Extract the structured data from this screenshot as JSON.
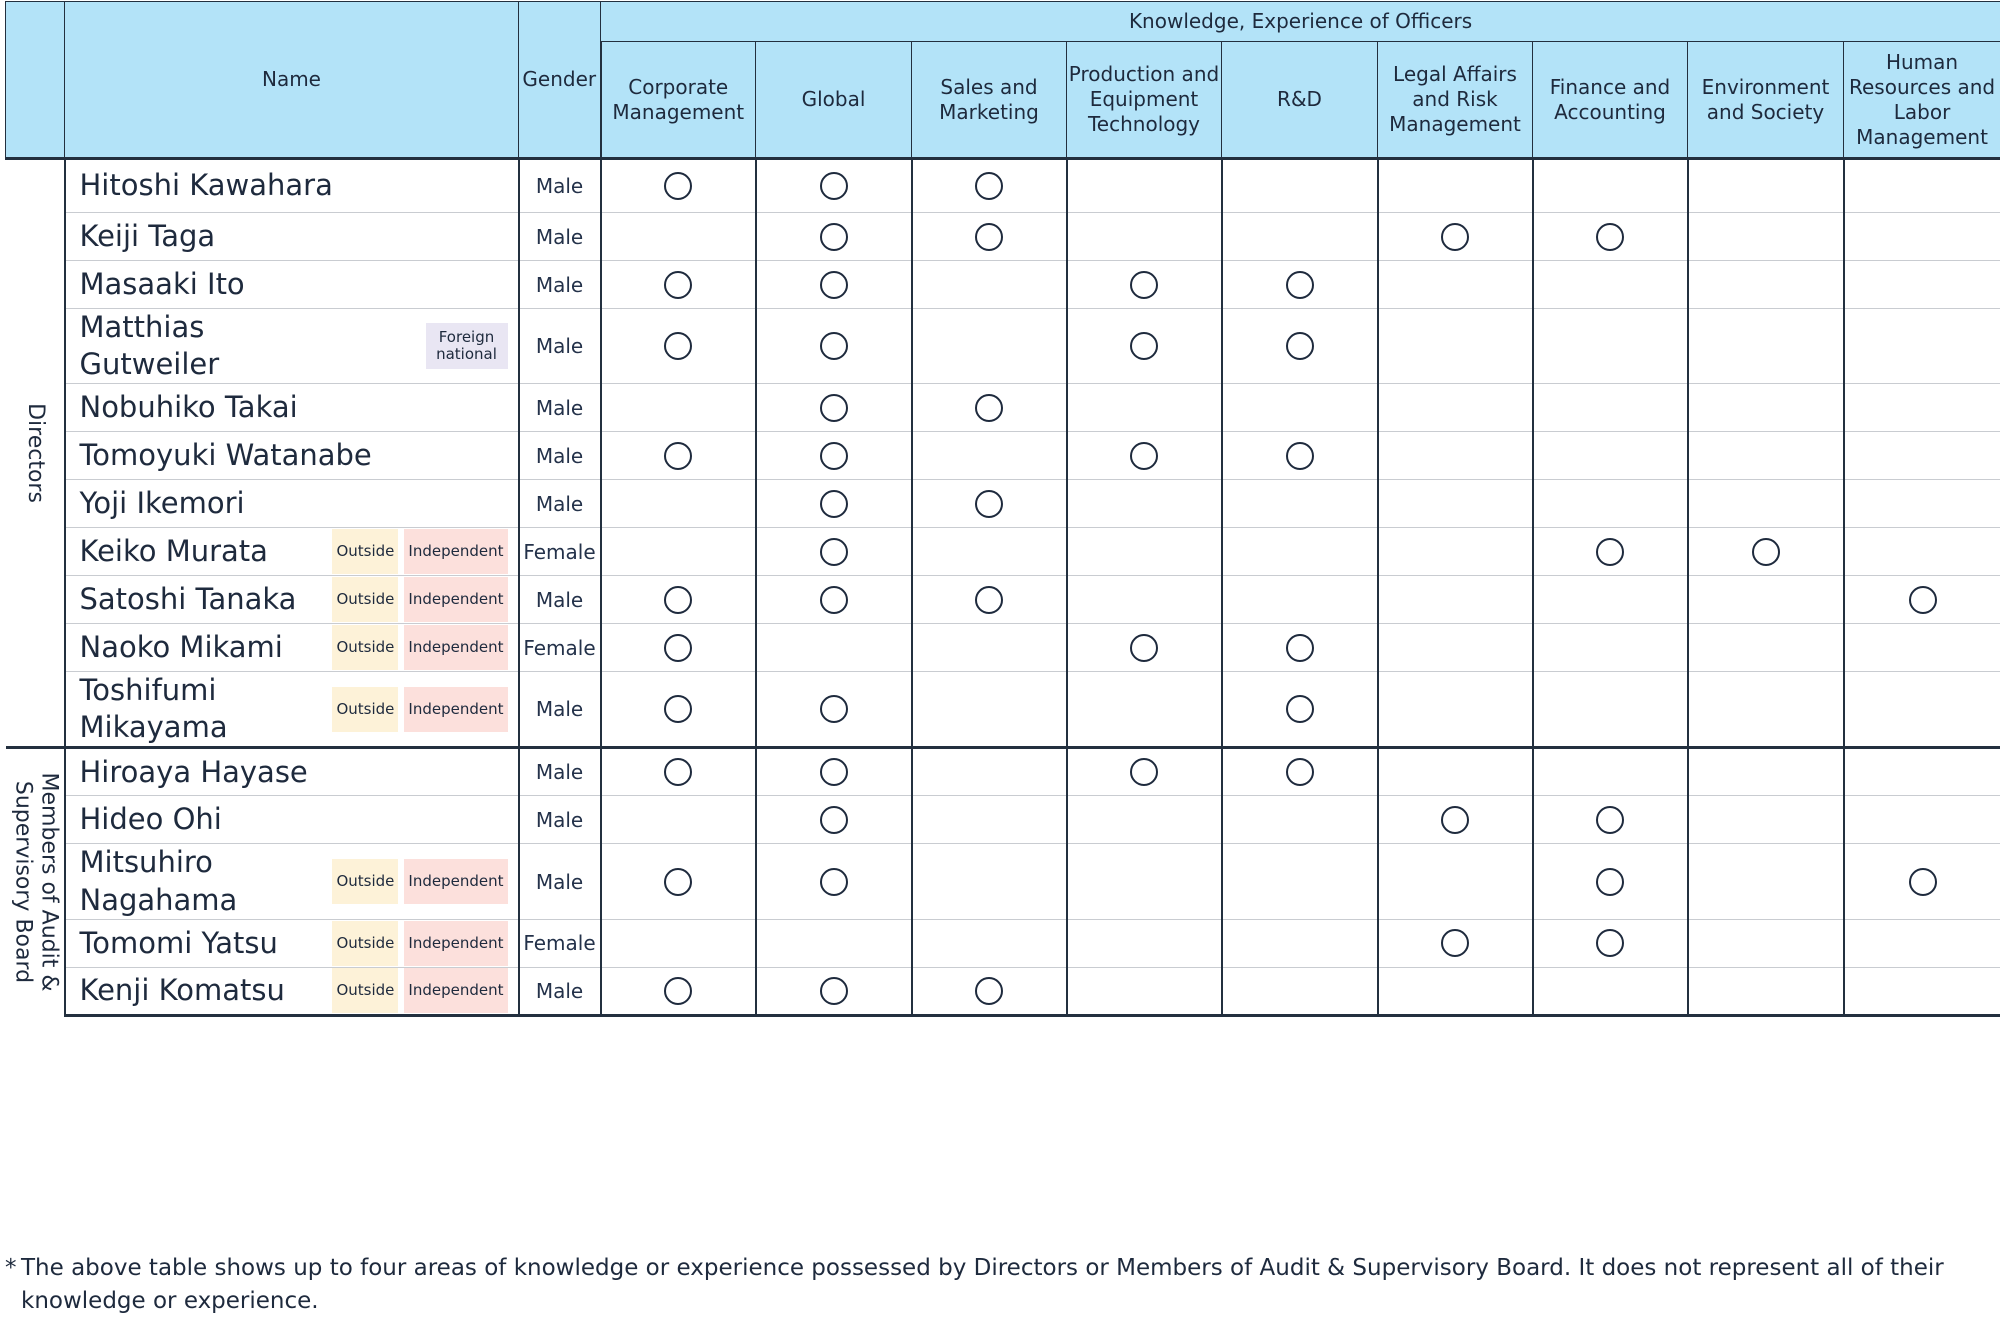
{
  "header": {
    "name_label": "Name",
    "gender_label": "Gender",
    "knowledge_label": "Knowledge, Experience of Officers",
    "categories": [
      "Corporate Management",
      "Global",
      "Sales and Marketing",
      "Production and Equipment Technology",
      "R&D",
      "Legal Affairs and Risk Management",
      "Finance and Accounting",
      "Environment and Society",
      "Human Resources and Labor Management"
    ]
  },
  "groups": [
    {
      "label": "Directors",
      "members": [
        {
          "name": "Hitoshi Kawahara",
          "gender": "Male",
          "badges": [],
          "marks": [
            1,
            1,
            1,
            0,
            0,
            0,
            0,
            0,
            0
          ]
        },
        {
          "name": "Keiji Taga",
          "gender": "Male",
          "badges": [],
          "marks": [
            0,
            1,
            1,
            0,
            0,
            1,
            1,
            0,
            0
          ]
        },
        {
          "name": "Masaaki Ito",
          "gender": "Male",
          "badges": [],
          "marks": [
            1,
            1,
            0,
            1,
            1,
            0,
            0,
            0,
            0
          ]
        },
        {
          "name": "Matthias Gutweiler",
          "gender": "Male",
          "badges": [
            {
              "type": "foreign",
              "label": "Foreign national"
            }
          ],
          "marks": [
            1,
            1,
            0,
            1,
            1,
            0,
            0,
            0,
            0
          ]
        },
        {
          "name": "Nobuhiko Takai",
          "gender": "Male",
          "badges": [],
          "marks": [
            0,
            1,
            1,
            0,
            0,
            0,
            0,
            0,
            0
          ]
        },
        {
          "name": "Tomoyuki Watanabe",
          "gender": "Male",
          "badges": [],
          "marks": [
            1,
            1,
            0,
            1,
            1,
            0,
            0,
            0,
            0
          ]
        },
        {
          "name": "Yoji Ikemori",
          "gender": "Male",
          "badges": [],
          "marks": [
            0,
            1,
            1,
            0,
            0,
            0,
            0,
            0,
            0
          ]
        },
        {
          "name": "Keiko Murata",
          "gender": "Female",
          "badges": [
            {
              "type": "outside",
              "label": "Outside"
            },
            {
              "type": "independent",
              "label": "Independent"
            }
          ],
          "marks": [
            0,
            1,
            0,
            0,
            0,
            0,
            1,
            1,
            0
          ]
        },
        {
          "name": "Satoshi Tanaka",
          "gender": "Male",
          "badges": [
            {
              "type": "outside",
              "label": "Outside"
            },
            {
              "type": "independent",
              "label": "Independent"
            }
          ],
          "marks": [
            1,
            1,
            1,
            0,
            0,
            0,
            0,
            0,
            1
          ]
        },
        {
          "name": "Naoko Mikami",
          "gender": "Female",
          "badges": [
            {
              "type": "outside",
              "label": "Outside"
            },
            {
              "type": "independent",
              "label": "Independent"
            }
          ],
          "marks": [
            1,
            0,
            0,
            1,
            1,
            0,
            0,
            0,
            0
          ]
        },
        {
          "name": "Toshifumi Mikayama",
          "gender": "Male",
          "badges": [
            {
              "type": "outside",
              "label": "Outside"
            },
            {
              "type": "independent",
              "label": "Independent"
            }
          ],
          "marks": [
            1,
            1,
            0,
            0,
            1,
            0,
            0,
            0,
            0
          ]
        }
      ]
    },
    {
      "label": "Members of Audit & Supervisory Board",
      "members": [
        {
          "name": "Hiroaya Hayase",
          "gender": "Male",
          "badges": [],
          "marks": [
            1,
            1,
            0,
            1,
            1,
            0,
            0,
            0,
            0
          ]
        },
        {
          "name": "Hideo Ohi",
          "gender": "Male",
          "badges": [],
          "marks": [
            0,
            1,
            0,
            0,
            0,
            1,
            1,
            0,
            0
          ]
        },
        {
          "name": "Mitsuhiro Nagahama",
          "gender": "Male",
          "badges": [
            {
              "type": "outside",
              "label": "Outside"
            },
            {
              "type": "independent",
              "label": "Independent"
            }
          ],
          "marks": [
            1,
            1,
            0,
            0,
            0,
            0,
            1,
            0,
            1
          ]
        },
        {
          "name": "Tomomi Yatsu",
          "gender": "Female",
          "badges": [
            {
              "type": "outside",
              "label": "Outside"
            },
            {
              "type": "independent",
              "label": "Independent"
            }
          ],
          "marks": [
            0,
            0,
            0,
            0,
            0,
            1,
            1,
            0,
            0
          ]
        },
        {
          "name": "Kenji Komatsu",
          "gender": "Male",
          "badges": [
            {
              "type": "outside",
              "label": "Outside"
            },
            {
              "type": "independent",
              "label": "Independent"
            }
          ],
          "marks": [
            1,
            1,
            1,
            0,
            0,
            0,
            0,
            0,
            0
          ]
        }
      ]
    }
  ],
  "footnote": {
    "mark": "*",
    "text": "The above table shows up to four areas of knowledge or experience possessed by Directors or Members of Audit & Supervisory Board. It does not represent all of their knowledge or experience."
  }
}
